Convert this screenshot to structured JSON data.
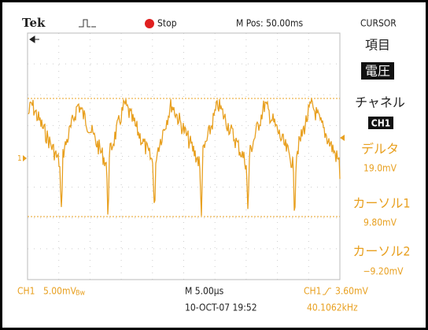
{
  "header": {
    "brand": "Tek",
    "status": "Stop",
    "position": "M Pos: 50.00ms",
    "menu_title": "CURSOR"
  },
  "menu": {
    "item_label": "項目",
    "item_value": "電圧",
    "channel_label": "チャネル",
    "channel_value": "CH1",
    "delta_label": "デルタ",
    "delta_value": "19.0mV",
    "cursor1_label": "カーソル1",
    "cursor1_value": "9.80mV",
    "cursor2_label": "カーソル2",
    "cursor2_value": "−9.20mV"
  },
  "screen": {
    "channel_marker": "1"
  },
  "footer": {
    "channel": "CH1",
    "scale": "5.00mV",
    "bandwidth": "Bw",
    "timebase": "M 5.00µs",
    "trigger_channel": "CH1",
    "trigger_level": "3.60mV",
    "datetime": "10-OCT-07 19:52",
    "frequency": "40.1062kHz"
  }
}
